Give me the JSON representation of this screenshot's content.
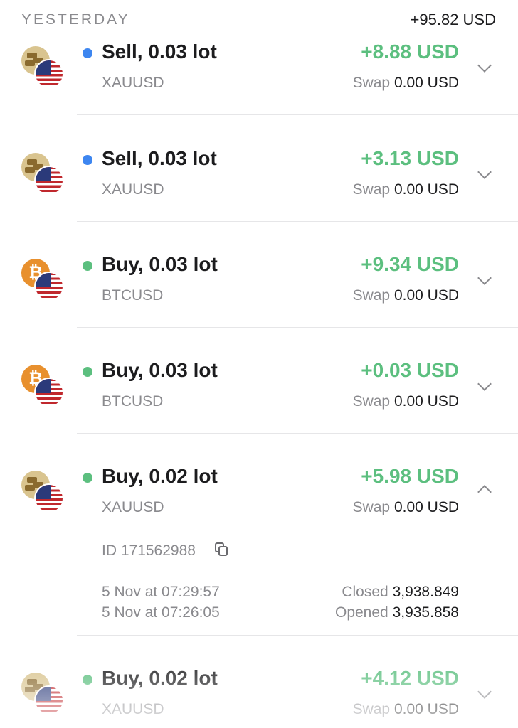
{
  "header": {
    "section": "YESTERDAY",
    "total": "+95.82 USD"
  },
  "colors": {
    "sell_dot": "#3d86f0",
    "buy_dot": "#5cbf7f",
    "profit": "#5cbf7f"
  },
  "trades": [
    {
      "title": "Sell, 0.03 lot",
      "side": "sell",
      "symbol": "XAUUSD",
      "icon": "gold-icon",
      "amount": "+8.88 USD",
      "swap_label": "Swap",
      "swap_value": "0.00 USD"
    },
    {
      "title": "Sell, 0.03 lot",
      "side": "sell",
      "symbol": "XAUUSD",
      "icon": "gold-icon",
      "amount": "+3.13 USD",
      "swap_label": "Swap",
      "swap_value": "0.00 USD"
    },
    {
      "title": "Buy, 0.03 lot",
      "side": "buy",
      "symbol": "BTCUSD",
      "icon": "bitcoin-icon",
      "amount": "+9.34 USD",
      "swap_label": "Swap",
      "swap_value": "0.00 USD"
    },
    {
      "title": "Buy, 0.03 lot",
      "side": "buy",
      "symbol": "BTCUSD",
      "icon": "bitcoin-icon",
      "amount": "+0.03 USD",
      "swap_label": "Swap",
      "swap_value": "0.00 USD"
    },
    {
      "title": "Buy, 0.02 lot",
      "side": "buy",
      "symbol": "XAUUSD",
      "icon": "gold-icon",
      "amount": "+5.98 USD",
      "swap_label": "Swap",
      "swap_value": "0.00 USD",
      "expanded": true,
      "details": {
        "id": "ID 171562988",
        "closed_time": "5 Nov at 07:29:57",
        "opened_time": "5 Nov at 07:26:05",
        "closed_label": "Closed",
        "closed_price": "3,938.849",
        "opened_label": "Opened",
        "opened_price": "3,935.858"
      }
    },
    {
      "title": "Buy, 0.02 lot",
      "side": "buy",
      "symbol": "XAUUSD",
      "icon": "gold-icon",
      "amount": "+4.12 USD",
      "swap_label": "Swap",
      "swap_value": "0.00 USD"
    }
  ]
}
